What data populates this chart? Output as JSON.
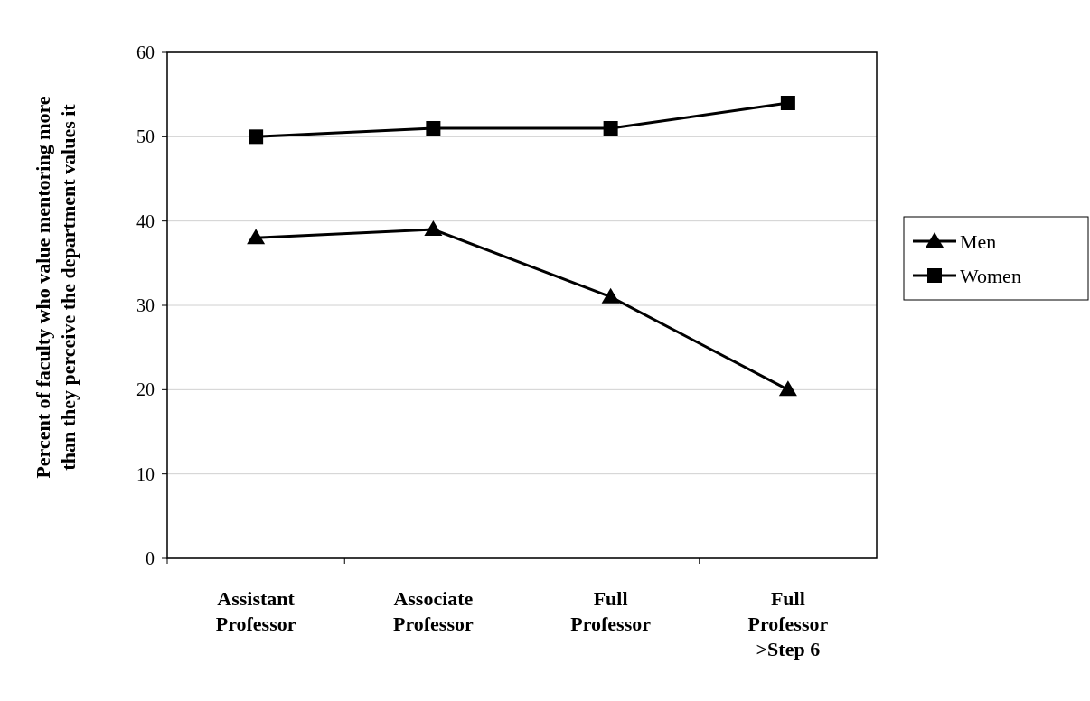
{
  "chart_data": {
    "type": "line",
    "ylabel": "Percent of faculty who value mentoring more\nthan they perceive the department values it",
    "categories": [
      "Assistant\nProfessor",
      "Associate\nProfessor",
      "Full\nProfessor",
      "Full\nProfessor\n>Step 6"
    ],
    "series": [
      {
        "name": "Men",
        "color": "#000000",
        "marker": "triangle",
        "values": [
          38,
          39,
          31,
          20
        ]
      },
      {
        "name": "Women",
        "color": "#000000",
        "marker": "square",
        "values": [
          50,
          51,
          51,
          54
        ]
      }
    ],
    "ylim": [
      0,
      60
    ],
    "yticks": [
      0,
      10,
      20,
      30,
      40,
      50,
      60
    ],
    "grid": "y",
    "legend": "right",
    "line_style": "solid"
  }
}
